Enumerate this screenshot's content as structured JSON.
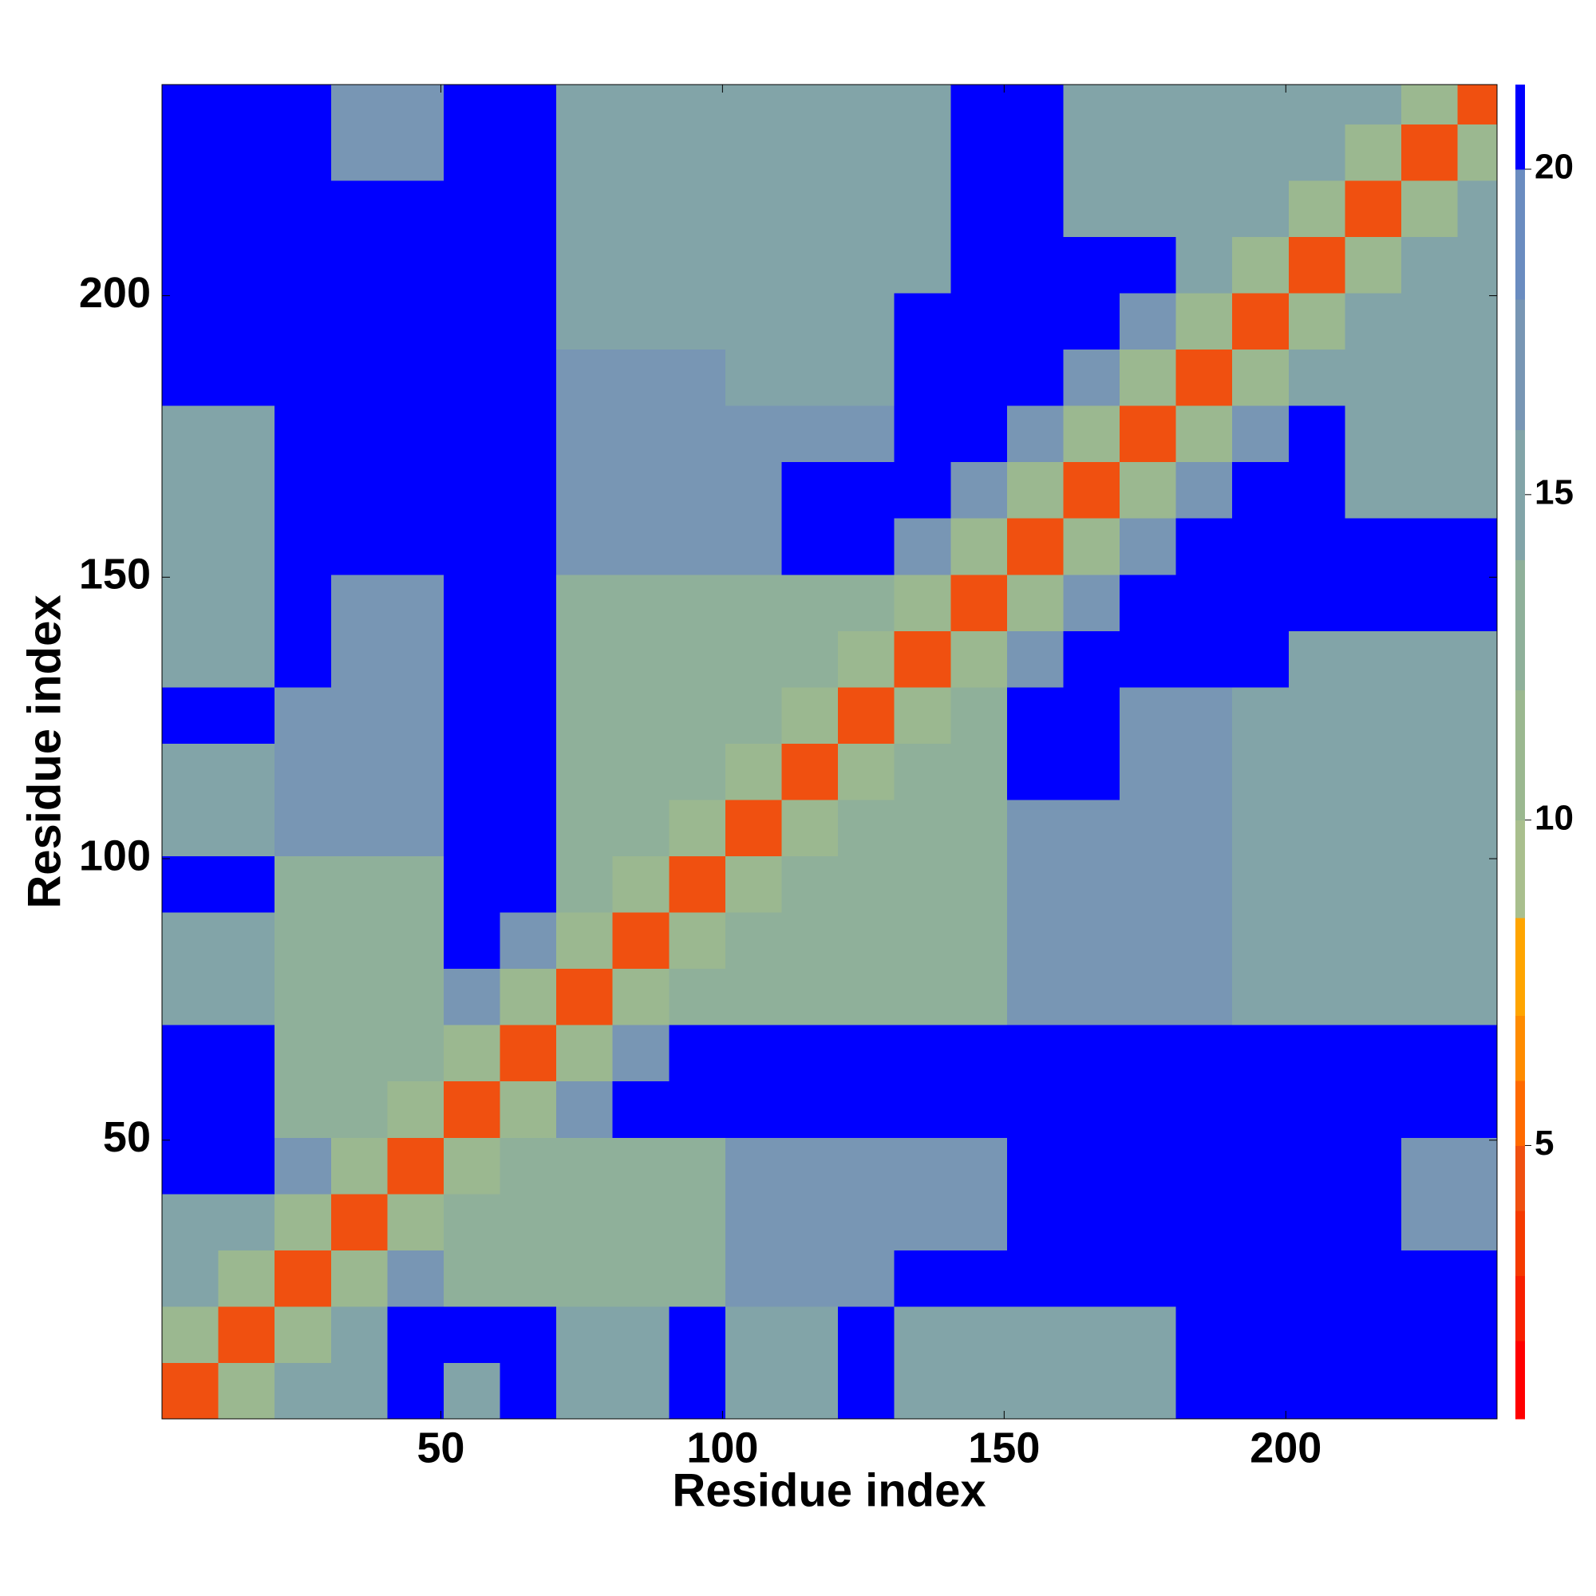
{
  "chart_data": {
    "type": "heatmap",
    "xlabel": "Residue index",
    "ylabel": "Residue index",
    "xlim": [
      0.5,
      237.5
    ],
    "ylim": [
      0.5,
      237.5
    ],
    "xticks": [
      50,
      100,
      150,
      200
    ],
    "yticks": [
      50,
      100,
      150,
      200
    ],
    "xbins": [
      0.5,
      10.5,
      20.5,
      30.5,
      40.5,
      50.5,
      60.5,
      70.5,
      80.5,
      90.5,
      100.5,
      110.5,
      120.5,
      130.5,
      140.5,
      150.5,
      160.5,
      170.5,
      180.5,
      190.5,
      200.5,
      210.5,
      220.5,
      230.5,
      237.5
    ],
    "ybins": [
      0.5,
      10.5,
      20.5,
      30.5,
      40.5,
      50.5,
      60.5,
      70.5,
      80.5,
      90.5,
      100.5,
      110.5,
      120.5,
      130.5,
      140.5,
      150.5,
      160.5,
      170.5,
      180.5,
      190.5,
      200.5,
      210.5,
      220.5,
      230.5,
      237.5
    ],
    "colorbar": {
      "lim": [
        0.8,
        21.3
      ],
      "ticks": [
        5,
        10,
        15,
        20
      ],
      "levels": [
        0.8,
        2,
        3,
        4,
        5,
        6,
        7,
        8.5,
        10,
        12,
        14,
        16,
        18,
        20,
        21.3
      ],
      "colors": [
        "#ff0000",
        "#f82000",
        "#f53a00",
        "#f05010",
        "#ff6a00",
        "#ff8c00",
        "#ffa500",
        "#a9bf8e",
        "#9bb890",
        "#8fb09a",
        "#82a4a8",
        "#7896b4",
        "#6a8cc0",
        "#0000ff"
      ]
    },
    "values": [
      [
        5,
        11,
        16,
        16,
        21,
        16,
        21,
        15,
        15,
        21,
        16,
        16,
        21,
        15,
        15,
        15,
        15,
        15,
        21,
        21,
        21,
        21,
        21,
        21
      ],
      [
        11,
        5,
        11,
        16,
        21,
        21,
        21,
        15,
        15,
        21,
        16,
        16,
        21,
        15,
        15,
        15,
        15,
        15,
        21,
        21,
        21,
        21,
        21,
        21
      ],
      [
        16,
        11,
        5,
        11,
        18,
        14,
        14,
        14,
        14,
        14,
        17,
        17,
        17,
        21,
        21,
        21,
        21,
        21,
        21,
        21,
        21,
        21,
        21,
        21
      ],
      [
        16,
        16,
        11,
        5,
        11,
        14,
        14,
        14,
        14,
        14,
        17,
        17,
        17,
        17,
        17,
        21,
        21,
        21,
        21,
        21,
        21,
        21,
        18,
        18
      ],
      [
        21,
        21,
        18,
        11,
        5,
        11,
        14,
        14,
        14,
        14,
        17,
        17,
        17,
        17,
        17,
        21,
        21,
        21,
        21,
        21,
        21,
        21,
        18,
        18
      ],
      [
        21,
        21,
        14,
        14,
        11,
        5,
        11,
        18,
        21,
        21,
        21,
        21,
        21,
        21,
        21,
        21,
        21,
        21,
        21,
        21,
        21,
        21,
        21,
        21
      ],
      [
        21,
        21,
        14,
        14,
        14,
        11,
        5,
        11,
        18,
        21,
        21,
        21,
        21,
        21,
        21,
        21,
        21,
        21,
        21,
        21,
        21,
        21,
        21,
        21
      ],
      [
        15,
        15,
        14,
        14,
        14,
        18,
        11,
        5,
        11,
        14,
        14,
        14,
        14,
        14,
        14,
        17,
        17,
        17,
        17,
        16,
        16,
        16,
        16,
        16
      ],
      [
        15,
        15,
        14,
        14,
        14,
        21,
        18,
        11,
        5,
        11,
        14,
        14,
        14,
        14,
        14,
        17,
        17,
        17,
        17,
        16,
        16,
        16,
        16,
        16
      ],
      [
        21,
        21,
        14,
        14,
        14,
        21,
        21,
        14,
        11,
        5,
        11,
        14,
        14,
        14,
        14,
        17,
        17,
        17,
        17,
        16,
        16,
        16,
        16,
        16
      ],
      [
        16,
        16,
        17,
        17,
        17,
        21,
        21,
        14,
        14,
        11,
        5,
        11,
        14,
        14,
        14,
        17,
        17,
        17,
        17,
        15,
        15,
        15,
        15,
        15
      ],
      [
        16,
        16,
        17,
        17,
        17,
        21,
        21,
        14,
        14,
        14,
        11,
        5,
        11,
        14,
        14,
        21,
        21,
        17,
        17,
        15,
        15,
        15,
        15,
        15
      ],
      [
        21,
        21,
        17,
        17,
        17,
        21,
        21,
        14,
        14,
        14,
        14,
        11,
        5,
        11,
        14,
        21,
        21,
        17,
        17,
        15,
        15,
        15,
        15,
        15
      ],
      [
        15,
        15,
        21,
        17,
        17,
        21,
        21,
        14,
        14,
        14,
        14,
        14,
        11,
        5,
        11,
        18,
        21,
        21,
        21,
        21,
        15,
        15,
        15,
        15
      ],
      [
        15,
        15,
        21,
        17,
        17,
        21,
        21,
        14,
        14,
        14,
        14,
        14,
        14,
        11,
        5,
        11,
        18,
        21,
        21,
        21,
        21,
        21,
        21,
        21
      ],
      [
        15,
        15,
        21,
        21,
        21,
        21,
        21,
        17,
        17,
        17,
        17,
        21,
        21,
        18,
        11,
        5,
        11,
        18,
        21,
        21,
        21,
        21,
        21,
        21
      ],
      [
        15,
        15,
        21,
        21,
        21,
        21,
        21,
        17,
        17,
        17,
        17,
        21,
        21,
        21,
        18,
        11,
        5,
        11,
        18,
        21,
        21,
        16,
        16,
        16
      ],
      [
        15,
        15,
        21,
        21,
        21,
        21,
        21,
        17,
        17,
        17,
        17,
        17,
        17,
        21,
        21,
        18,
        11,
        5,
        11,
        18,
        21,
        16,
        16,
        16
      ],
      [
        21,
        21,
        21,
        21,
        21,
        21,
        21,
        17,
        17,
        17,
        15,
        15,
        15,
        21,
        21,
        21,
        18,
        11,
        5,
        11,
        15,
        15,
        15,
        15
      ],
      [
        21,
        21,
        21,
        21,
        21,
        21,
        21,
        16,
        16,
        16,
        15,
        15,
        15,
        21,
        21,
        21,
        21,
        18,
        11,
        5,
        11,
        15,
        15,
        15
      ],
      [
        21,
        21,
        21,
        21,
        21,
        21,
        21,
        16,
        16,
        16,
        15,
        15,
        15,
        15,
        21,
        21,
        21,
        21,
        15,
        11,
        5,
        11,
        15,
        15
      ],
      [
        21,
        21,
        21,
        21,
        21,
        21,
        21,
        16,
        16,
        16,
        15,
        15,
        15,
        15,
        21,
        21,
        16,
        16,
        15,
        15,
        11,
        5,
        11,
        15
      ],
      [
        21,
        21,
        21,
        18,
        18,
        21,
        21,
        16,
        16,
        16,
        15,
        15,
        15,
        15,
        21,
        21,
        16,
        16,
        15,
        15,
        15,
        11,
        5,
        11
      ],
      [
        21,
        21,
        21,
        18,
        18,
        21,
        21,
        16,
        16,
        16,
        15,
        15,
        15,
        15,
        21,
        21,
        16,
        16,
        15,
        15,
        15,
        15,
        11,
        5
      ]
    ]
  }
}
